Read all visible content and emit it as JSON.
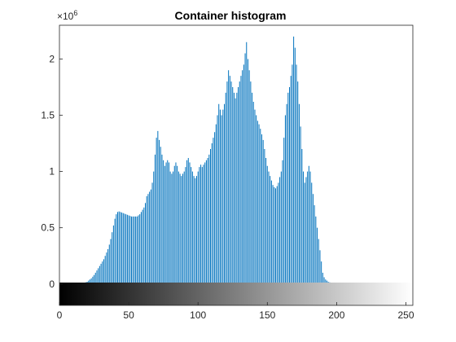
{
  "chart_data": {
    "type": "bar",
    "title": "Container histogram",
    "xlabel": "",
    "ylabel": "",
    "x_ticks": [
      0,
      50,
      100,
      150,
      200,
      250
    ],
    "y_ticks": [
      0,
      0.5,
      1,
      1.5,
      2
    ],
    "y_tick_labels": [
      "0",
      "0.5",
      "1",
      "1.5",
      "2"
    ],
    "y_exponent_base": "×10",
    "y_exponent_power": "6",
    "xlim": [
      0,
      255
    ],
    "ylim_scaled": [
      -0.19,
      2.3
    ],
    "y_scale_factor": 1000000,
    "grid": false,
    "bar_color": "#0072BD",
    "colorbar": "grayscale 0 to 255 beneath the x axis",
    "series": [
      {
        "x_start": 0,
        "values": [
          0,
          0,
          0,
          0,
          0,
          0,
          0,
          0,
          0,
          0,
          0,
          0,
          0,
          0,
          0,
          0,
          0,
          0,
          0.01,
          0.015,
          0.02,
          0.03,
          0.04,
          0.05,
          0.065,
          0.08,
          0.1,
          0.12,
          0.14,
          0.16,
          0.18,
          0.2,
          0.22,
          0.25,
          0.28,
          0.31,
          0.35,
          0.4,
          0.46,
          0.52,
          0.58,
          0.62,
          0.64,
          0.645,
          0.64,
          0.635,
          0.63,
          0.625,
          0.62,
          0.615,
          0.61,
          0.605,
          0.6,
          0.6,
          0.6,
          0.6,
          0.6,
          0.61,
          0.62,
          0.64,
          0.66,
          0.68,
          0.72,
          0.78,
          0.8,
          0.82,
          0.84,
          0.9,
          1.0,
          1.15,
          1.3,
          1.36,
          1.28,
          1.22,
          1.15,
          1.1,
          1.05,
          1.08,
          1.1,
          1.08,
          1.0,
          0.98,
          1.0,
          1.05,
          1.08,
          1.05,
          1.0,
          0.98,
          0.96,
          0.98,
          1.0,
          1.04,
          1.1,
          1.12,
          1.08,
          1.04,
          1.0,
          0.96,
          0.94,
          0.96,
          1.0,
          1.04,
          1.06,
          1.04,
          1.06,
          1.08,
          1.1,
          1.12,
          1.15,
          1.2,
          1.25,
          1.3,
          1.35,
          1.42,
          1.5,
          1.6,
          1.55,
          1.5,
          1.55,
          1.6,
          1.7,
          1.8,
          1.9,
          1.85,
          1.8,
          1.75,
          1.7,
          1.65,
          1.7,
          1.75,
          1.8,
          1.85,
          1.9,
          1.95,
          2.05,
          2.15,
          2.0,
          1.9,
          1.8,
          1.7,
          1.62,
          1.55,
          1.5,
          1.45,
          1.42,
          1.38,
          1.33,
          1.28,
          1.2,
          1.12,
          1.05,
          1.0,
          0.96,
          0.92,
          0.88,
          0.86,
          0.85,
          0.87,
          0.9,
          0.95,
          1.0,
          1.1,
          1.3,
          1.5,
          1.6,
          1.7,
          1.75,
          1.85,
          1.95,
          2.2,
          2.1,
          1.95,
          1.8,
          1.6,
          1.4,
          1.2,
          1.0,
          0.9,
          0.95,
          1.0,
          1.05,
          1.0,
          0.9,
          0.8,
          0.7,
          0.6,
          0.5,
          0.4,
          0.3,
          0.2,
          0.1,
          0.06,
          0.04,
          0.03,
          0.02,
          0.015,
          0.01,
          0.008,
          0.006,
          0.005,
          0.004,
          0.003,
          0.002,
          0.002,
          0.001,
          0.001,
          0.001,
          0.001,
          0.0005,
          0.0005,
          0.0005,
          0.0005,
          0,
          0,
          0,
          0,
          0,
          0,
          0,
          0,
          0,
          0,
          0,
          0,
          0,
          0,
          0,
          0,
          0,
          0,
          0,
          0,
          0,
          0,
          0,
          0,
          0,
          0,
          0,
          0,
          0,
          0,
          0,
          0,
          0,
          0,
          0,
          0,
          0,
          0,
          0,
          0,
          0,
          0,
          0,
          0,
          0,
          0,
          0,
          0,
          0
        ]
      }
    ]
  }
}
